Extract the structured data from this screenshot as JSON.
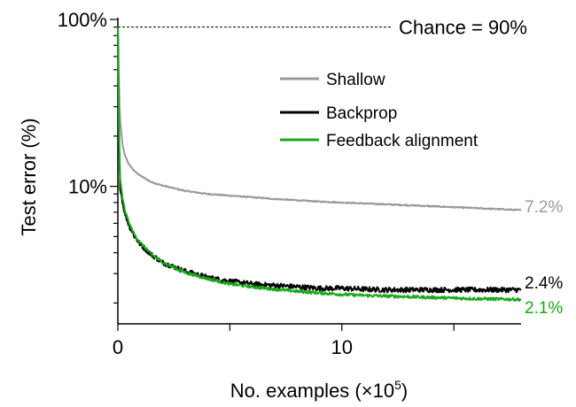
{
  "chart_data": {
    "type": "line",
    "xlabel": "No. examples (×10",
    "xlabel_sup": "5",
    "xlabel_close": ")",
    "ylabel": "Test error (%)",
    "xlim": [
      0,
      18
    ],
    "ylim": [
      1.5,
      100
    ],
    "y_scale": "log",
    "x_ticks": [
      0,
      5,
      10,
      15
    ],
    "x_tick_labels": [
      {
        "x": 0,
        "label": "0"
      },
      {
        "x": 10,
        "label": "10"
      }
    ],
    "y_ticks": [
      2,
      3,
      4,
      5,
      6,
      7,
      8,
      9,
      10,
      20,
      30,
      40,
      50,
      60,
      70,
      80,
      90,
      100
    ],
    "y_tick_labels": [
      {
        "y": 10,
        "label": "10%"
      },
      {
        "y": 100,
        "label": "100%"
      }
    ],
    "chance": {
      "y": 90,
      "label": "Chance = 90%"
    },
    "legend_position": "top-right",
    "series": [
      {
        "name": "Shallow",
        "color": "#999999",
        "end_label": "7.2%",
        "x": [
          0,
          0.05,
          0.1,
          0.2,
          0.3,
          0.5,
          0.75,
          1,
          1.5,
          2,
          3,
          4,
          5,
          6,
          7,
          8,
          9,
          10,
          11,
          12,
          13,
          14,
          15,
          16,
          17,
          18
        ],
        "y": [
          90,
          40,
          25,
          18,
          15.5,
          13.5,
          12.3,
          11.6,
          10.6,
          10.1,
          9.4,
          9.0,
          8.8,
          8.6,
          8.4,
          8.25,
          8.1,
          8.0,
          7.9,
          7.8,
          7.7,
          7.6,
          7.5,
          7.4,
          7.3,
          7.2
        ],
        "noise": 0.008
      },
      {
        "name": "Backprop",
        "color": "#000000",
        "end_label": "2.4%",
        "x": [
          0,
          0.05,
          0.1,
          0.2,
          0.3,
          0.5,
          0.75,
          1,
          1.5,
          2,
          3,
          4,
          5,
          6,
          7,
          8,
          9,
          10,
          11,
          12,
          13,
          14,
          15,
          16,
          17,
          18
        ],
        "y": [
          90,
          20,
          10,
          8.2,
          7.0,
          5.8,
          5.0,
          4.5,
          3.9,
          3.5,
          3.1,
          2.85,
          2.7,
          2.6,
          2.55,
          2.5,
          2.45,
          2.45,
          2.42,
          2.4,
          2.4,
          2.4,
          2.4,
          2.4,
          2.4,
          2.4
        ],
        "noise": 0.035
      },
      {
        "name": "Feedback alignment",
        "color": "#18a818",
        "end_label": "2.1%",
        "x": [
          0,
          0.05,
          0.1,
          0.2,
          0.3,
          0.5,
          0.75,
          1,
          1.5,
          2,
          3,
          4,
          5,
          6,
          7,
          8,
          9,
          10,
          11,
          12,
          13,
          14,
          15,
          16,
          17,
          18
        ],
        "y": [
          90,
          22,
          11,
          8.6,
          7.3,
          6.0,
          5.1,
          4.6,
          3.9,
          3.5,
          3.05,
          2.8,
          2.6,
          2.5,
          2.42,
          2.35,
          2.3,
          2.25,
          2.22,
          2.2,
          2.18,
          2.16,
          2.14,
          2.12,
          2.11,
          2.1
        ],
        "noise": 0.02
      }
    ]
  }
}
